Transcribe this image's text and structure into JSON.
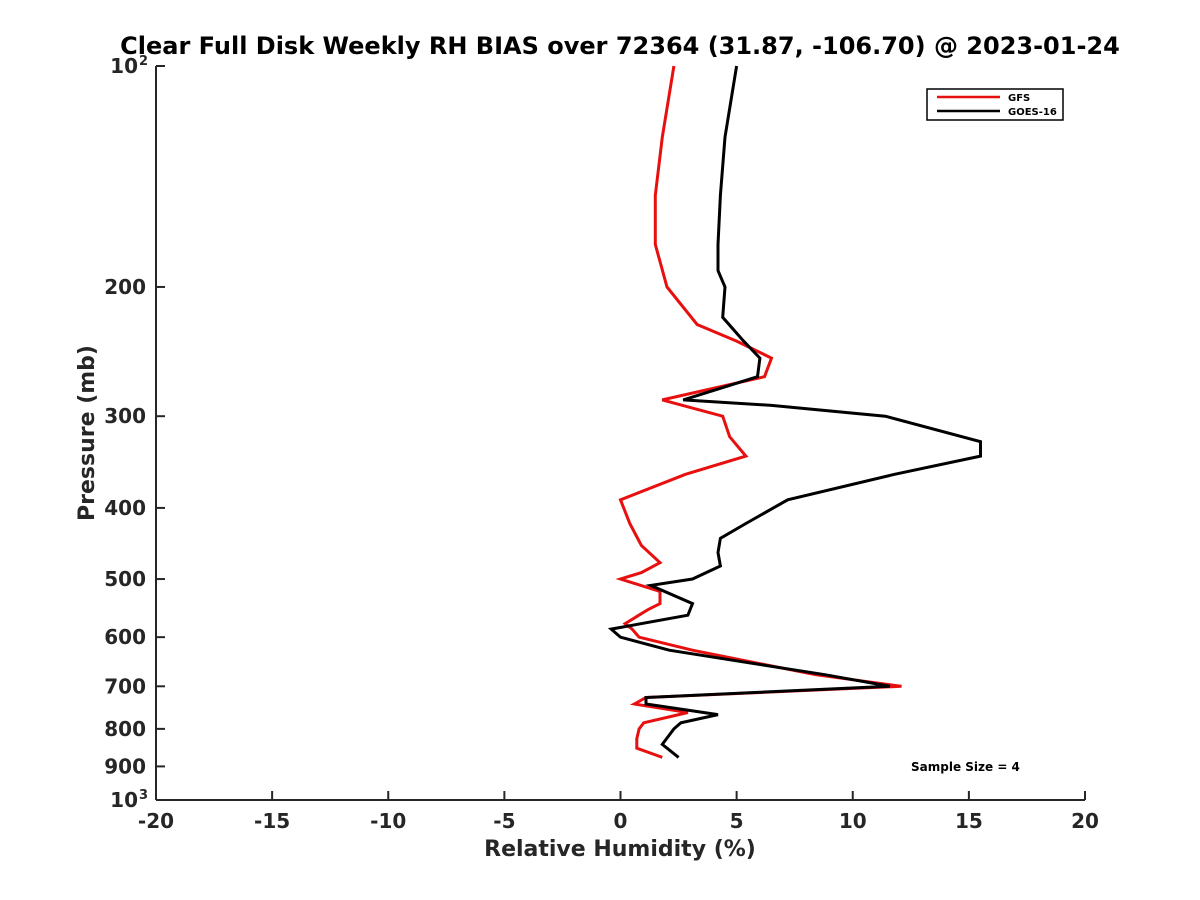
{
  "chart_data": {
    "type": "line",
    "title": "Clear Full Disk Weekly RH BIAS over 72364 (31.87, -106.70) @ 2023-01-24",
    "xlabel": "Relative Humidity (%)",
    "ylabel": "Pressure (mb)",
    "xlim": [
      -20,
      20
    ],
    "ylim": [
      1000,
      100
    ],
    "yscale": "log",
    "y_reversed": true,
    "grid": false,
    "legend_position": "top-right",
    "annotation": "Sample Size = 4",
    "x_ticks": [
      {
        "value": -20,
        "label": "-20"
      },
      {
        "value": -15,
        "label": "-15"
      },
      {
        "value": -10,
        "label": "-10"
      },
      {
        "value": -5,
        "label": "-5"
      },
      {
        "value": 0,
        "label": "0"
      },
      {
        "value": 5,
        "label": "5"
      },
      {
        "value": 10,
        "label": "10"
      },
      {
        "value": 15,
        "label": "15"
      },
      {
        "value": 20,
        "label": "20"
      }
    ],
    "y_ticks": [
      {
        "value": 100,
        "label": "10",
        "sup": "2"
      },
      {
        "value": 200,
        "label": "200",
        "sup": ""
      },
      {
        "value": 300,
        "label": "300",
        "sup": ""
      },
      {
        "value": 400,
        "label": "400",
        "sup": ""
      },
      {
        "value": 500,
        "label": "500",
        "sup": ""
      },
      {
        "value": 600,
        "label": "600",
        "sup": ""
      },
      {
        "value": 700,
        "label": "700",
        "sup": ""
      },
      {
        "value": 800,
        "label": "800",
        "sup": ""
      },
      {
        "value": 900,
        "label": "900",
        "sup": ""
      },
      {
        "value": 1000,
        "label": "10",
        "sup": "3"
      }
    ],
    "series": [
      {
        "name": "GFS",
        "color": "#e8100f",
        "points": [
          {
            "p": 100,
            "x": 2.3
          },
          {
            "p": 125,
            "x": 1.8
          },
          {
            "p": 150,
            "x": 1.5
          },
          {
            "p": 175,
            "x": 1.5
          },
          {
            "p": 200,
            "x": 2.0
          },
          {
            "p": 225,
            "x": 3.3
          },
          {
            "p": 237,
            "x": 5.0
          },
          {
            "p": 250,
            "x": 6.5
          },
          {
            "p": 265,
            "x": 6.2
          },
          {
            "p": 285,
            "x": 1.8
          },
          {
            "p": 300,
            "x": 4.4
          },
          {
            "p": 320,
            "x": 4.7
          },
          {
            "p": 340,
            "x": 5.4
          },
          {
            "p": 360,
            "x": 2.8
          },
          {
            "p": 390,
            "x": 0.0
          },
          {
            "p": 420,
            "x": 0.4
          },
          {
            "p": 450,
            "x": 0.9
          },
          {
            "p": 475,
            "x": 1.7
          },
          {
            "p": 490,
            "x": 0.9
          },
          {
            "p": 500,
            "x": 0.0
          },
          {
            "p": 520,
            "x": 1.7
          },
          {
            "p": 540,
            "x": 1.7
          },
          {
            "p": 550,
            "x": 1.2
          },
          {
            "p": 575,
            "x": 0.2
          },
          {
            "p": 585,
            "x": 0.5
          },
          {
            "p": 600,
            "x": 0.8
          },
          {
            "p": 625,
            "x": 3.1
          },
          {
            "p": 650,
            "x": 5.8
          },
          {
            "p": 675,
            "x": 8.4
          },
          {
            "p": 700,
            "x": 12.1
          },
          {
            "p": 725,
            "x": 1.1
          },
          {
            "p": 740,
            "x": 0.6
          },
          {
            "p": 760,
            "x": 2.9
          },
          {
            "p": 785,
            "x": 1.0
          },
          {
            "p": 800,
            "x": 0.8
          },
          {
            "p": 825,
            "x": 0.7
          },
          {
            "p": 850,
            "x": 0.7
          },
          {
            "p": 875,
            "x": 1.8
          }
        ]
      },
      {
        "name": "GOES-16",
        "color": "#000000",
        "points": [
          {
            "p": 100,
            "x": 5.0
          },
          {
            "p": 125,
            "x": 4.5
          },
          {
            "p": 150,
            "x": 4.3
          },
          {
            "p": 175,
            "x": 4.2
          },
          {
            "p": 190,
            "x": 4.2
          },
          {
            "p": 200,
            "x": 4.5
          },
          {
            "p": 220,
            "x": 4.4
          },
          {
            "p": 237,
            "x": 5.3
          },
          {
            "p": 250,
            "x": 6.0
          },
          {
            "p": 265,
            "x": 5.9
          },
          {
            "p": 285,
            "x": 2.7
          },
          {
            "p": 290,
            "x": 6.5
          },
          {
            "p": 300,
            "x": 11.4
          },
          {
            "p": 325,
            "x": 15.5
          },
          {
            "p": 340,
            "x": 15.5
          },
          {
            "p": 360,
            "x": 11.8
          },
          {
            "p": 390,
            "x": 7.2
          },
          {
            "p": 420,
            "x": 5.4
          },
          {
            "p": 440,
            "x": 4.3
          },
          {
            "p": 460,
            "x": 4.2
          },
          {
            "p": 480,
            "x": 4.3
          },
          {
            "p": 500,
            "x": 3.1
          },
          {
            "p": 510,
            "x": 1.3
          },
          {
            "p": 540,
            "x": 3.1
          },
          {
            "p": 560,
            "x": 2.9
          },
          {
            "p": 585,
            "x": -0.4
          },
          {
            "p": 600,
            "x": 0.0
          },
          {
            "p": 625,
            "x": 2.1
          },
          {
            "p": 650,
            "x": 5.5
          },
          {
            "p": 675,
            "x": 8.8
          },
          {
            "p": 700,
            "x": 11.6
          },
          {
            "p": 725,
            "x": 1.1
          },
          {
            "p": 740,
            "x": 1.1
          },
          {
            "p": 765,
            "x": 4.2
          },
          {
            "p": 785,
            "x": 2.6
          },
          {
            "p": 800,
            "x": 2.3
          },
          {
            "p": 840,
            "x": 1.8
          },
          {
            "p": 875,
            "x": 2.5
          }
        ]
      }
    ]
  }
}
